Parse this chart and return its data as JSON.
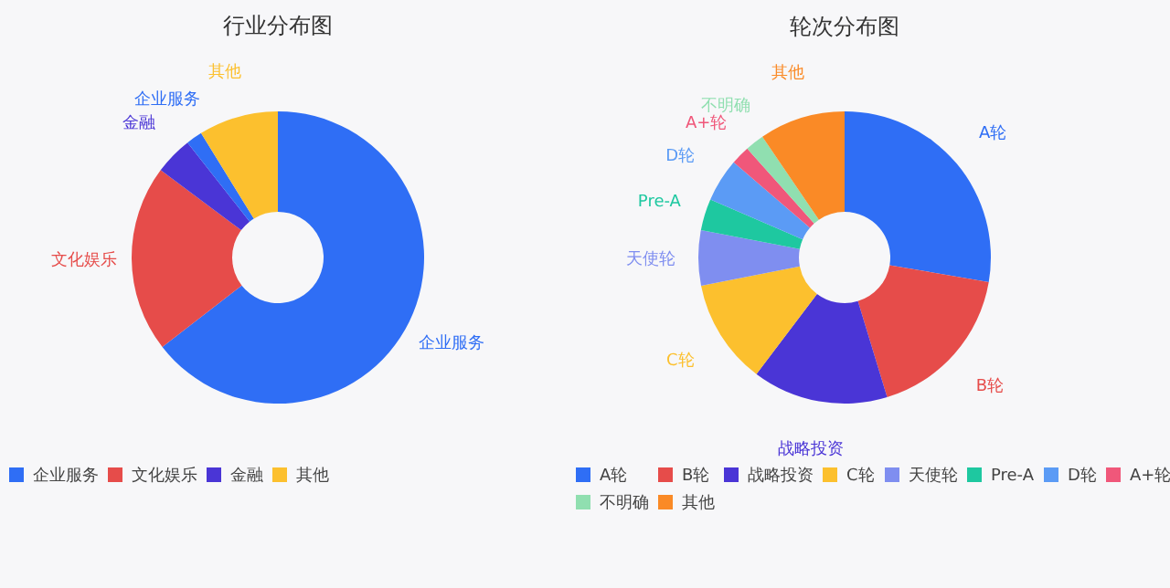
{
  "chart_data": [
    {
      "type": "donut",
      "title": "行业分布图",
      "categories": [
        "企业服务",
        "文化娱乐",
        "金融",
        "企业服务",
        "其他"
      ],
      "values": [
        64.5,
        20.7,
        4.2,
        1.8,
        8.8
      ],
      "colors": [
        "#2f6ef5",
        "#e64c4a",
        "#4a35d6",
        "#2f6ef5",
        "#fcc02e"
      ],
      "legend": "bottom"
    },
    {
      "type": "donut",
      "title": "轮次分布图",
      "categories": [
        "A轮",
        "B轮",
        "战略投资",
        "C轮",
        "天使轮",
        "Pre-A",
        "D轮",
        "A+轮",
        "不明确",
        "其他"
      ],
      "values": [
        27.7,
        17.6,
        15.0,
        11.6,
        6.1,
        3.5,
        4.8,
        2.1,
        2.1,
        9.5
      ],
      "colors": [
        "#2f6ef5",
        "#e64c4a",
        "#4a35d6",
        "#fcc02e",
        "#7f8ef0",
        "#1ec8a0",
        "#5b9bf5",
        "#f0577a",
        "#90dfb0",
        "#fa8a26"
      ],
      "legend": "bottom"
    }
  ]
}
